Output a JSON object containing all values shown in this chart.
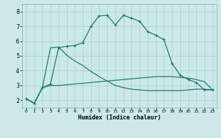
{
  "xlabel": "Humidex (Indice chaleur)",
  "background_color": "#cce8e8",
  "grid_color": "#aacece",
  "line_color": "#1a7a6a",
  "xlim": [
    -0.5,
    23.5
  ],
  "ylim": [
    1.5,
    8.5
  ],
  "xticks": [
    0,
    1,
    2,
    3,
    4,
    5,
    6,
    7,
    8,
    9,
    10,
    11,
    12,
    13,
    14,
    15,
    16,
    17,
    18,
    19,
    20,
    21,
    22,
    23
  ],
  "yticks": [
    2,
    3,
    4,
    5,
    6,
    7,
    8
  ],
  "series1_marked": {
    "x": [
      0,
      1,
      2,
      3,
      4,
      5,
      6,
      7,
      8,
      9,
      10,
      11,
      12,
      13,
      14,
      15,
      16,
      17,
      18,
      19,
      20,
      21,
      22,
      23
    ],
    "y": [
      2.1,
      1.8,
      2.85,
      3.1,
      5.55,
      5.65,
      5.7,
      5.9,
      7.0,
      7.7,
      7.75,
      7.1,
      7.75,
      7.55,
      7.35,
      6.65,
      6.4,
      6.1,
      4.5,
      3.7,
      3.4,
      3.2,
      2.7,
      2.7
    ]
  },
  "series2_flat": {
    "x": [
      0,
      1,
      2,
      3,
      4,
      5,
      6,
      7,
      8,
      9,
      10,
      11,
      12,
      13,
      14,
      15,
      16,
      17,
      18,
      19,
      20,
      21,
      22,
      23
    ],
    "y": [
      2.1,
      1.8,
      2.85,
      3.0,
      3.0,
      3.05,
      3.1,
      3.15,
      3.2,
      3.25,
      3.3,
      3.35,
      3.4,
      3.45,
      3.5,
      3.55,
      3.6,
      3.6,
      3.6,
      3.55,
      3.5,
      3.4,
      3.25,
      2.7
    ]
  },
  "series3_descending": {
    "x": [
      0,
      1,
      2,
      3,
      4,
      5,
      6,
      7,
      8,
      9,
      10,
      11,
      12,
      13,
      14,
      15,
      16,
      17,
      18,
      19,
      20,
      21,
      22,
      23
    ],
    "y": [
      2.1,
      1.8,
      2.85,
      5.55,
      5.6,
      5.05,
      4.65,
      4.35,
      3.95,
      3.6,
      3.3,
      3.0,
      2.85,
      2.75,
      2.7,
      2.65,
      2.65,
      2.65,
      2.65,
      2.65,
      2.7,
      2.75,
      2.75,
      2.7
    ]
  }
}
